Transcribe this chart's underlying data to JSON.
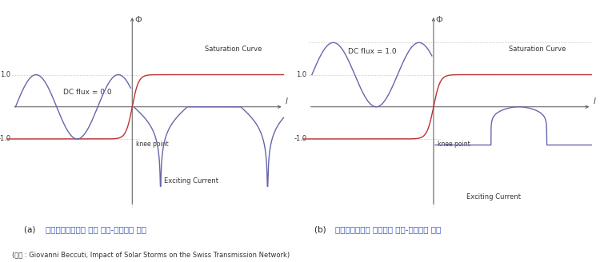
{
  "fig_width": 7.55,
  "fig_height": 3.28,
  "dpi": 100,
  "bg_color": "#ffffff",
  "sat_curve_color": "#bb3333",
  "flux_curve_color": "#6666aa",
  "axis_color": "#555555",
  "dotted_color": "#aaaaaa",
  "annotation_color": "#333333",
  "korean_color": "#3355bb",
  "label_a_dc": "DC flux = 0.0",
  "label_b_dc": "DC flux = 1.0",
  "label_sat": "Saturation Curve",
  "label_exc": "Exciting Current",
  "label_knee": "knee point",
  "subtitle_a_prefix": "(a)  ",
  "subtitle_a_korean": "지자기유도전류가 없는 자속-여자전류 관계",
  "subtitle_b_prefix": "(b)  ",
  "subtitle_b_korean": "지자기유도전류 환경에서 자속-여자전류 관계",
  "source_text": "(출체 : Giovanni Beccuti, Impact of Solar Storms on the Swiss Transmission Network)"
}
